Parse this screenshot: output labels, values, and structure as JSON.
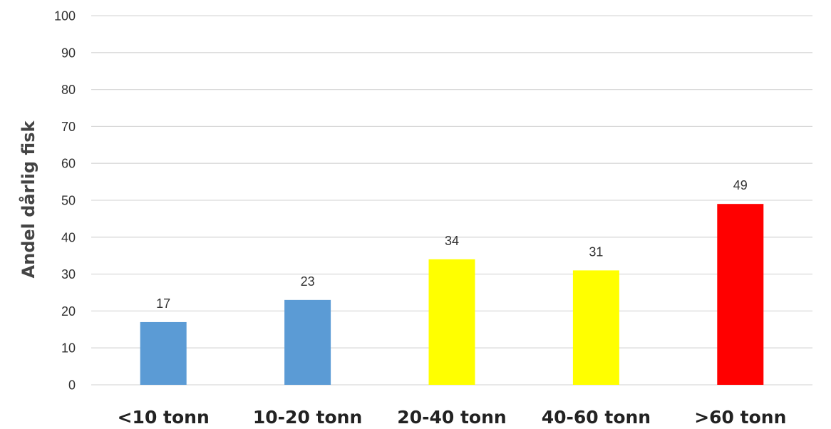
{
  "chart_data": {
    "type": "bar",
    "title": "",
    "xlabel": "",
    "ylabel": "Andel dårlig fisk",
    "categories": [
      "<10 tonn",
      "10-20 tonn",
      "20-40 tonn",
      "40-60 tonn",
      ">60 tonn"
    ],
    "values": [
      17,
      23,
      34,
      31,
      49
    ],
    "data_labels": [
      "17",
      "23",
      "34",
      "31",
      "49"
    ],
    "bar_colors": [
      "#5b9bd5",
      "#5b9bd5",
      "#ffff00",
      "#ffff00",
      "#ff0000"
    ],
    "ylim": [
      0,
      100
    ],
    "yticks": [
      0,
      10,
      20,
      30,
      40,
      50,
      60,
      70,
      80,
      90,
      100
    ],
    "grid": true,
    "legend": "none"
  }
}
